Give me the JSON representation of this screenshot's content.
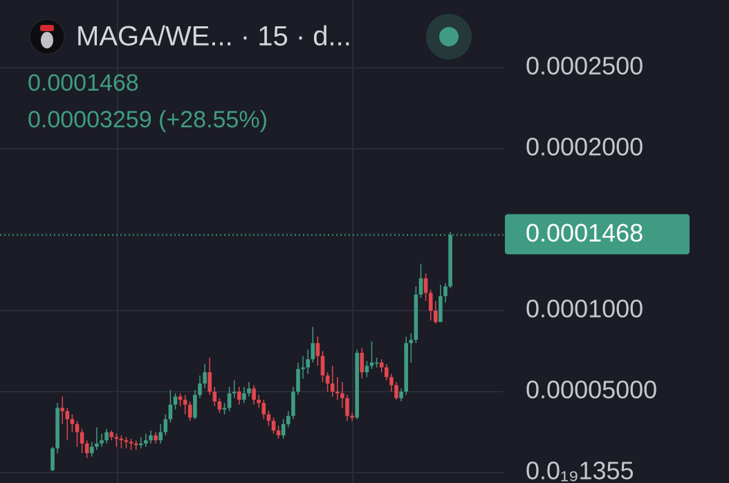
{
  "chart_data": {
    "type": "candlestick",
    "title": "MAGA/WE... · 15 · d...",
    "last_price": 0.0001468,
    "change_line": "0.00003259 (+28.55%)",
    "up_color": "#3f9c82",
    "down_color": "#e2474e",
    "grid": true,
    "ylim": [
      -6.4e-06,
      0.0002919
    ],
    "yticks": [
      {
        "value": 1.355e-20,
        "label": "0.0₁₉1355"
      },
      {
        "value": 5e-05,
        "label": "0.00005000"
      },
      {
        "value": 0.0001,
        "label": "0.0001000"
      },
      {
        "value": 0.0002,
        "label": "0.0002000"
      },
      {
        "value": 0.00025,
        "label": "0.0002500"
      }
    ],
    "candles": [
      [
        1.5e-06,
        1.6e-05,
        1e-06,
        1.5e-05
      ],
      [
        1.5e-05,
        4.3e-05,
        1.2e-05,
        4e-05
      ],
      [
        4e-05,
        4.7e-05,
        3e-05,
        3.8e-05
      ],
      [
        3.8e-05,
        4e-05,
        2e-05,
        3.3e-05
      ],
      [
        3.3e-05,
        3.6e-05,
        2.5e-05,
        3e-05
      ],
      [
        3e-05,
        3.2e-05,
        1.6e-05,
        2.5e-05
      ],
      [
        2.5e-05,
        2.7e-05,
        1.2e-05,
        1.8e-05
      ],
      [
        1.8e-05,
        2e-05,
        9e-06,
        1.2e-05
      ],
      [
        1.2e-05,
        1.9e-05,
        1e-05,
        1.6e-05
      ],
      [
        1.6e-05,
        2.8e-05,
        1.4e-05,
        1.8e-05
      ],
      [
        1.8e-05,
        2.4e-05,
        1.6e-05,
        2e-05
      ],
      [
        2e-05,
        2.7e-05,
        1.8e-05,
        2.5e-05
      ],
      [
        2.5e-05,
        2.6e-05,
        2e-05,
        2.2e-05
      ],
      [
        2.2e-05,
        2.4e-05,
        1.6e-05,
        2.1e-05
      ],
      [
        2.1e-05,
        2.3e-05,
        1.5e-05,
        2e-05
      ],
      [
        2e-05,
        2.2e-05,
        1.5e-05,
        1.9e-05
      ],
      [
        1.9e-05,
        2.1e-05,
        1.4e-05,
        1.8e-05
      ],
      [
        1.8e-05,
        2e-05,
        1.4e-05,
        1.7e-05
      ],
      [
        1.7e-05,
        2.2e-05,
        1.5e-05,
        1.8e-05
      ],
      [
        1.8e-05,
        2.4e-05,
        1.6e-05,
        2e-05
      ],
      [
        2e-05,
        2.6e-05,
        1.8e-05,
        2.3e-05
      ],
      [
        2.3e-05,
        2.5e-05,
        1.8e-05,
        2e-05
      ],
      [
        2e-05,
        3e-05,
        1.8e-05,
        2.5e-05
      ],
      [
        2.5e-05,
        3.6e-05,
        2.3e-05,
        3.3e-05
      ],
      [
        3.3e-05,
        5.1e-05,
        3.1e-05,
        4.2e-05
      ],
      [
        4.2e-05,
        4.9e-05,
        3.9e-05,
        4.7e-05
      ],
      [
        4.7e-05,
        4.9e-05,
        4.1e-05,
        4.5e-05
      ],
      [
        4.5e-05,
        4.8e-05,
        3.6e-05,
        4.2e-05
      ],
      [
        4.2e-05,
        4.4e-05,
        3.2e-05,
        3.4e-05
      ],
      [
        3.4e-05,
        5.1e-05,
        3.3e-05,
        4.8e-05
      ],
      [
        4.8e-05,
        6e-05,
        4.6e-05,
        5.5e-05
      ],
      [
        5.5e-05,
        6.7e-05,
        5.2e-05,
        6.2e-05
      ],
      [
        6.2e-05,
        7.1e-05,
        4.8e-05,
        5e-05
      ],
      [
        5e-05,
        5.3e-05,
        4.1e-05,
        4.4e-05
      ],
      [
        4.4e-05,
        4.6e-05,
        3.7e-05,
        3.9e-05
      ],
      [
        3.9e-05,
        4.3e-05,
        3.6e-05,
        4e-05
      ],
      [
        4e-05,
        5.3e-05,
        3.8e-05,
        4.9e-05
      ],
      [
        4.9e-05,
        5.7e-05,
        4.6e-05,
        5e-05
      ],
      [
        5e-05,
        5.3e-05,
        4.2e-05,
        4.5e-05
      ],
      [
        4.5e-05,
        5.3e-05,
        4.3e-05,
        4.9e-05
      ],
      [
        4.9e-05,
        5.6e-05,
        4.7e-05,
        5.2e-05
      ],
      [
        5.2e-05,
        5.4e-05,
        4.2e-05,
        4.5e-05
      ],
      [
        4.5e-05,
        4.8e-05,
        4e-05,
        4.3e-05
      ],
      [
        4.3e-05,
        4.5e-05,
        3.3e-05,
        3.6e-05
      ],
      [
        3.6e-05,
        3.8e-05,
        2.9e-05,
        3.2e-05
      ],
      [
        3.2e-05,
        3.4e-05,
        2.4e-05,
        2.6e-05
      ],
      [
        2.6e-05,
        2.9e-05,
        2.1e-05,
        2.3e-05
      ],
      [
        2.3e-05,
        3.3e-05,
        2.1e-05,
        3e-05
      ],
      [
        3e-05,
        3.8e-05,
        2.8e-05,
        3.5e-05
      ],
      [
        3.5e-05,
        5.3e-05,
        3.3e-05,
        5e-05
      ],
      [
        5e-05,
        6.8e-05,
        4.8e-05,
        6.4e-05
      ],
      [
        6.4e-05,
        7.2e-05,
        5.8e-05,
        6.5e-05
      ],
      [
        6.5e-05,
        7.6e-05,
        6.1e-05,
        7e-05
      ],
      [
        7e-05,
        9e-05,
        6.8e-05,
        8e-05
      ],
      [
        8e-05,
        8.4e-05,
        6.6e-05,
        7.2e-05
      ],
      [
        7.2e-05,
        7.5e-05,
        5.6e-05,
        6e-05
      ],
      [
        6e-05,
        6.2e-05,
        5e-05,
        5.5e-05
      ],
      [
        5.5e-05,
        6.6e-05,
        4.7e-05,
        5e-05
      ],
      [
        5e-05,
        5.9e-05,
        4.5e-05,
        4.9e-05
      ],
      [
        4.9e-05,
        5.6e-05,
        4e-05,
        4.6e-05
      ],
      [
        4.6e-05,
        4.8e-05,
        3.2e-05,
        3.5e-05
      ],
      [
        3.5e-05,
        3.7e-05,
        3.2e-05,
        3.4e-05
      ],
      [
        3.4e-05,
        7.6e-05,
        3.3e-05,
        7.4e-05
      ],
      [
        7.4e-05,
        7.7e-05,
        5.8e-05,
        6.2e-05
      ],
      [
        6.2e-05,
        6.9e-05,
        5.9e-05,
        6.6e-05
      ],
      [
        6.6e-05,
        8.1e-05,
        6.4e-05,
        6.8e-05
      ],
      [
        6.8e-05,
        7.1e-05,
        6.5e-05,
        6.8e-05
      ],
      [
        6.8e-05,
        7e-05,
        6.2e-05,
        6.5e-05
      ],
      [
        6.5e-05,
        6.7e-05,
        5.7e-05,
        5.9e-05
      ],
      [
        5.9e-05,
        6.1e-05,
        5e-05,
        5.4e-05
      ],
      [
        5.4e-05,
        5.6e-05,
        4.5e-05,
        4.6e-05
      ],
      [
        4.6e-05,
        5.2e-05,
        4.4e-05,
        5e-05
      ],
      [
        5e-05,
        8.4e-05,
        4.8e-05,
        8e-05
      ],
      [
        8e-05,
        8.6e-05,
        6.8e-05,
        8.2e-05
      ],
      [
        8.2e-05,
        0.000115,
        8e-05,
        0.00011
      ],
      [
        0.00011,
        0.000129,
        0.000108,
        0.00012
      ],
      [
        0.00012,
        0.000123,
        0.000106,
        0.000111
      ],
      [
        0.000111,
        0.000113,
        9.4e-05,
        0.0001
      ],
      [
        0.0001,
        0.000106,
        9.2e-05,
        9.3e-05
      ],
      [
        9.3e-05,
        0.000116,
        9.3e-05,
        0.000109
      ],
      [
        0.000109,
        0.000117,
        0.000105,
        0.000115
      ],
      [
        0.000115,
        0.0001487,
        0.000114,
        0.0001468
      ]
    ]
  }
}
